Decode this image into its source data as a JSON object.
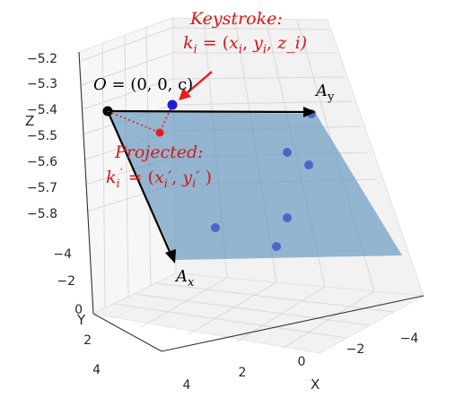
{
  "chart_data": {
    "type": "scatter",
    "projection": "3d",
    "xlabel": "X",
    "ylabel": "Y",
    "zlabel": "Z",
    "x_ticks": [
      "4",
      "2",
      "0",
      "−2",
      "−4"
    ],
    "y_ticks": [
      "−4",
      "−2",
      "0",
      "2",
      "4"
    ],
    "z_ticks": [
      "−5.2",
      "−5.3",
      "−5.4",
      "−5.5",
      "−5.6",
      "−5.7",
      "−5.8"
    ],
    "plane_color": "#5f94bd",
    "point_color": "#2f4fc8",
    "highlight_color": "#1d1dd4",
    "projected_color": "#e81c1c",
    "annotation_color": "#d41919",
    "annotations": {
      "keystroke_title": "Keystroke:",
      "keystroke_formula": "k_i = (x_i, y_i, z_i)",
      "origin": "O = (0, 0, c)",
      "projected_title": "Projected:",
      "projected_formula": "k_i′ = (x_i′, y_i′ )",
      "vector_y": "A_y",
      "vector_x": "A_x"
    }
  },
  "figure": {
    "keystroke_title": "Keystroke:",
    "keystroke_k": "k",
    "keystroke_sub": "i",
    "keystroke_eq": " = (",
    "keystroke_x": "x",
    "keystroke_xsub": "i",
    "keystroke_comma1": ", ",
    "keystroke_y": "y",
    "keystroke_ysub": "i",
    "keystroke_comma2": ", ",
    "keystroke_z": "z_i)",
    "origin_o": "O",
    "origin_eq": " = (0, 0, c)",
    "projected_title": "Projected:",
    "projected_k": "k",
    "projected_sub": "i",
    "projected_prime": "′",
    "projected_eq": " = (",
    "projected_x": "x",
    "projected_xsub": "i",
    "projected_xprime": "′",
    "projected_comma": ", ",
    "projected_y": "y",
    "projected_ysub": "i",
    "projected_yprime": "′",
    "projected_close": " )",
    "ay_a": "A",
    "ay_sub": "y",
    "ax_a": "A",
    "ax_sub": "x"
  }
}
